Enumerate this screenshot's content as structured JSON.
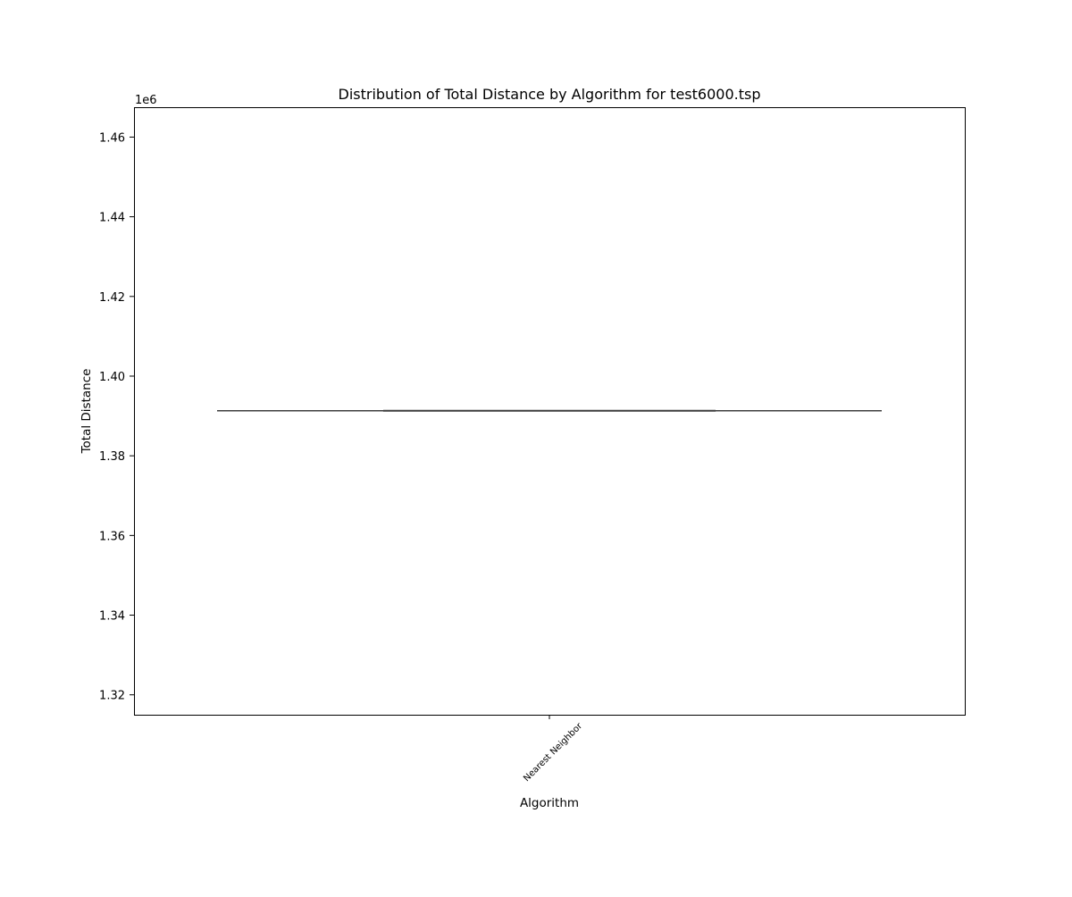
{
  "chart_data": {
    "type": "box",
    "title": "Distribution of Total Distance by Algorithm for test6000.tsp",
    "xlabel": "Algorithm",
    "ylabel": "Total Distance",
    "y_offset_label": "1e6",
    "categories": [
      "Nearest Neighbor"
    ],
    "boxes": [
      {
        "category": "Nearest Neighbor",
        "min": 1.3913,
        "q1": 1.3913,
        "median": 1.3913,
        "q3": 1.3913,
        "max": 1.3913
      }
    ],
    "ylim": [
      1.315,
      1.4675
    ],
    "yticks": [
      1.32,
      1.34,
      1.36,
      1.38,
      1.4,
      1.42,
      1.44,
      1.46
    ],
    "ytick_labels": [
      "1.32",
      "1.34",
      "1.36",
      "1.38",
      "1.40",
      "1.42",
      "1.44",
      "1.46"
    ],
    "grid": false,
    "legend": "none",
    "colors": {
      "axes": "#000000",
      "box_line": "#3f3f3f"
    }
  }
}
